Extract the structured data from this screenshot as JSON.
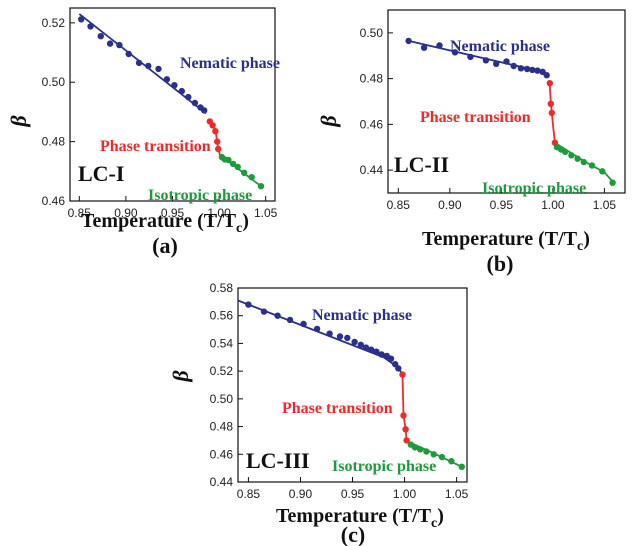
{
  "colors": {
    "nematic": "#2b2f8f",
    "transition": "#ee2a2a",
    "isotropic": "#1f9a3c",
    "axis": "#111111"
  },
  "chart_data": [
    {
      "type": "scatter",
      "panel_label": "(a)",
      "sample": "LC-I",
      "xlabel": "Temperature (T/T",
      "xlabel_sub": "c",
      "xlabel_close": ")",
      "ylabel": "β",
      "xlim": [
        0.84,
        1.06
      ],
      "ylim": [
        0.46,
        0.525
      ],
      "xticks": [
        "0.85",
        "0.90",
        "0.95",
        "1.00",
        "1.05"
      ],
      "xtick_values": [
        0.85,
        0.9,
        0.95,
        1.0,
        1.05
      ],
      "yticks": [
        "0.46",
        "0.48",
        "0.50",
        "0.52"
      ],
      "ytick_values": [
        0.46,
        0.48,
        0.5,
        0.52
      ],
      "annotations": {
        "nematic": "Nematic phase",
        "transition": "Phase transition",
        "isotropic": "Isotropic phase"
      },
      "series": [
        {
          "phase": "nematic",
          "points": [
            [
              0.852,
              0.5212
            ],
            [
              0.862,
              0.5188
            ],
            [
              0.873,
              0.5155
            ],
            [
              0.883,
              0.513
            ],
            [
              0.893,
              0.5125
            ],
            [
              0.903,
              0.5095
            ],
            [
              0.914,
              0.5065
            ],
            [
              0.924,
              0.5055
            ],
            [
              0.935,
              0.5045
            ],
            [
              0.944,
              0.501
            ],
            [
              0.952,
              0.499
            ],
            [
              0.96,
              0.497
            ],
            [
              0.967,
              0.495
            ],
            [
              0.974,
              0.493
            ],
            [
              0.98,
              0.4915
            ],
            [
              0.984,
              0.4905
            ]
          ],
          "fit": [
            [
              0.85,
              0.523
            ],
            [
              0.986,
              0.4895
            ]
          ]
        },
        {
          "phase": "transition",
          "points": [
            [
              0.99,
              0.4868
            ],
            [
              0.993,
              0.4855
            ],
            [
              0.996,
              0.4835
            ],
            [
              0.998,
              0.48
            ],
            [
              0.999,
              0.4775
            ]
          ],
          "fit": [
            [
              0.988,
              0.4875
            ],
            [
              0.993,
              0.4858
            ],
            [
              0.996,
              0.484
            ],
            [
              0.998,
              0.48
            ],
            [
              0.999,
              0.4775
            ],
            [
              1.001,
              0.4755
            ]
          ]
        },
        {
          "phase": "isotropic",
          "points": [
            [
              1.003,
              0.4748
            ],
            [
              1.006,
              0.474
            ],
            [
              1.01,
              0.4738
            ],
            [
              1.015,
              0.4725
            ],
            [
              1.02,
              0.4715
            ],
            [
              1.027,
              0.4695
            ],
            [
              1.035,
              0.468
            ],
            [
              1.045,
              0.465
            ]
          ],
          "fit": [
            [
              1.001,
              0.4755
            ],
            [
              1.045,
              0.465
            ]
          ]
        }
      ]
    },
    {
      "type": "scatter",
      "panel_label": "(b)",
      "sample": "LC-II",
      "xlabel": "Temperature (T/T",
      "xlabel_sub": "c",
      "xlabel_close": ")",
      "ylabel": "β",
      "xlim": [
        0.84,
        1.07
      ],
      "ylim": [
        0.43,
        0.51
      ],
      "xticks": [
        "0.85",
        "0.90",
        "0.95",
        "1.00",
        "1.05"
      ],
      "xtick_values": [
        0.85,
        0.9,
        0.95,
        1.0,
        1.05
      ],
      "yticks": [
        "0.44",
        "0.46",
        "0.48",
        "0.50"
      ],
      "ytick_values": [
        0.44,
        0.46,
        0.48,
        0.5
      ],
      "annotations": {
        "nematic": "Nematic phase",
        "transition": "Phase transition",
        "isotropic": "Isotropic phase"
      },
      "series": [
        {
          "phase": "nematic",
          "points": [
            [
              0.86,
              0.4965
            ],
            [
              0.875,
              0.4935
            ],
            [
              0.89,
              0.4945
            ],
            [
              0.905,
              0.4915
            ],
            [
              0.92,
              0.4895
            ],
            [
              0.935,
              0.488
            ],
            [
              0.945,
              0.4865
            ],
            [
              0.955,
              0.4875
            ],
            [
              0.962,
              0.4855
            ],
            [
              0.969,
              0.4845
            ],
            [
              0.975,
              0.4842
            ],
            [
              0.98,
              0.4838
            ],
            [
              0.985,
              0.4835
            ],
            [
              0.99,
              0.483
            ],
            [
              0.994,
              0.4815
            ]
          ],
          "fit": [
            [
              0.86,
              0.4965
            ],
            [
              0.99,
              0.483
            ],
            [
              0.995,
              0.4815
            ]
          ]
        },
        {
          "phase": "transition",
          "points": [
            [
              0.997,
              0.478
            ],
            [
              0.998,
              0.469
            ],
            [
              0.999,
              0.465
            ],
            [
              1.002,
              0.452
            ]
          ],
          "fit": [
            [
              0.995,
              0.479
            ],
            [
              0.997,
              0.477
            ],
            [
              0.998,
              0.4695
            ],
            [
              0.999,
              0.4655
            ],
            [
              1.0,
              0.46
            ],
            [
              1.002,
              0.452
            ]
          ]
        },
        {
          "phase": "isotropic",
          "points": [
            [
              1.004,
              0.45
            ],
            [
              1.008,
              0.449
            ],
            [
              1.012,
              0.448
            ],
            [
              1.018,
              0.4465
            ],
            [
              1.024,
              0.445
            ],
            [
              1.03,
              0.4435
            ],
            [
              1.038,
              0.442
            ],
            [
              1.048,
              0.4395
            ],
            [
              1.058,
              0.4345
            ]
          ],
          "fit": [
            [
              1.002,
              0.452
            ],
            [
              1.03,
              0.444
            ],
            [
              1.05,
              0.439
            ],
            [
              1.06,
              0.434
            ]
          ]
        }
      ]
    },
    {
      "type": "scatter",
      "panel_label": "(c)",
      "sample": "LC-III",
      "xlabel": "Temperature (T/T",
      "xlabel_sub": "c",
      "xlabel_close": ")",
      "ylabel": "β",
      "xlim": [
        0.84,
        1.06
      ],
      "ylim": [
        0.44,
        0.58
      ],
      "xticks": [
        "0.85",
        "0.90",
        "0.95",
        "1.00",
        "1.05"
      ],
      "xtick_values": [
        0.85,
        0.9,
        0.95,
        1.0,
        1.05
      ],
      "yticks": [
        "0.44",
        "0.46",
        "0.48",
        "0.50",
        "0.52",
        "0.54",
        "0.56",
        "0.58"
      ],
      "ytick_values": [
        0.44,
        0.46,
        0.48,
        0.5,
        0.52,
        0.54,
        0.56,
        0.58
      ],
      "annotations": {
        "nematic": "Nematic phase",
        "transition": "Phase transition",
        "isotropic": "Isotropic phase"
      },
      "series": [
        {
          "phase": "nematic",
          "points": [
            [
              0.85,
              0.568
            ],
            [
              0.865,
              0.563
            ],
            [
              0.878,
              0.56
            ],
            [
              0.89,
              0.557
            ],
            [
              0.903,
              0.554
            ],
            [
              0.916,
              0.5505
            ],
            [
              0.928,
              0.547
            ],
            [
              0.938,
              0.545
            ],
            [
              0.945,
              0.544
            ],
            [
              0.952,
              0.541
            ],
            [
              0.958,
              0.539
            ],
            [
              0.963,
              0.537
            ],
            [
              0.968,
              0.5355
            ],
            [
              0.973,
              0.534
            ],
            [
              0.978,
              0.532
            ],
            [
              0.983,
              0.531
            ],
            [
              0.987,
              0.529
            ],
            [
              0.991,
              0.525
            ],
            [
              0.994,
              0.522
            ]
          ],
          "fit": [
            [
              0.84,
              0.571
            ],
            [
              0.98,
              0.53
            ],
            [
              0.993,
              0.523
            ],
            [
              0.997,
              0.519
            ]
          ]
        },
        {
          "phase": "transition",
          "points": [
            [
              0.998,
              0.5175
            ],
            [
              0.999,
              0.488
            ],
            [
              1.001,
              0.478
            ],
            [
              1.002,
              0.47
            ]
          ],
          "fit": [
            [
              0.997,
              0.519
            ],
            [
              0.998,
              0.5175
            ],
            [
              0.999,
              0.488
            ],
            [
              1.001,
              0.478
            ],
            [
              1.002,
              0.47
            ],
            [
              1.004,
              0.469
            ]
          ]
        },
        {
          "phase": "isotropic",
          "points": [
            [
              1.006,
              0.467
            ],
            [
              1.01,
              0.465
            ],
            [
              1.015,
              0.4635
            ],
            [
              1.021,
              0.462
            ],
            [
              1.028,
              0.46
            ],
            [
              1.036,
              0.458
            ],
            [
              1.045,
              0.455
            ],
            [
              1.055,
              0.451
            ]
          ],
          "fit": [
            [
              1.004,
              0.469
            ],
            [
              1.03,
              0.46
            ],
            [
              1.055,
              0.451
            ]
          ]
        }
      ]
    }
  ]
}
